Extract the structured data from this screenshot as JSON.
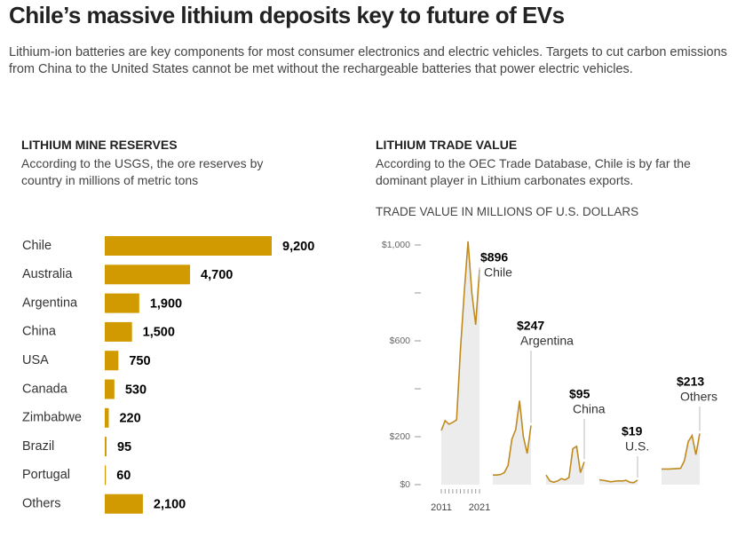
{
  "title": "Chile’s massive lithium deposits key to future of EVs",
  "description": "Lithium-ion batteries are key components for most consumer electronics and electric vehicles. Targets to cut carbon emissions from China to the United States cannot be met without the rechargeable batteries that power electric vehicles.",
  "chart_data": [
    {
      "type": "bar",
      "orientation": "horizontal",
      "title": "LITHIUM MINE RESERVES",
      "subtitle": "According to the USGS, the ore reserves by country in millions of metric tons",
      "categories": [
        "Chile",
        "Australia",
        "Argentina",
        "China",
        "USA",
        "Canada",
        "Zimbabwe",
        "Brazil",
        "Portugal",
        "Others"
      ],
      "values": [
        9200,
        4700,
        1900,
        1500,
        750,
        530,
        220,
        95,
        60,
        2100
      ],
      "value_labels": [
        "9,200",
        "4,700",
        "1,900",
        "1,500",
        "750",
        "530",
        "220",
        "95",
        "60",
        "2,100"
      ],
      "color": "#d19a00"
    },
    {
      "type": "line",
      "title": "LITHIUM TRADE VALUE",
      "subtitle": "According to the OEC Trade Database, Chile is by far the dominant player in Lithium carbonates exports.",
      "y_label": "TRADE VALUE IN MILLIONS OF U.S. DOLLARS",
      "x": [
        2011,
        2012,
        2013,
        2014,
        2015,
        2016,
        2017,
        2018,
        2019,
        2020,
        2021
      ],
      "xticks": [
        2011,
        2021
      ],
      "ylim": [
        0,
        1050
      ],
      "yticks": [
        {
          "value": 0,
          "label": "$0"
        },
        {
          "value": 200,
          "label": "$200"
        },
        {
          "value": 600,
          "label": "$600"
        },
        {
          "value": 1000,
          "label": "$1,000"
        }
      ],
      "minor_yticks": [
        400,
        800
      ],
      "color": "#c08a1e",
      "series": [
        {
          "name": "Chile",
          "value_label": "$896",
          "values": [
            226,
            267,
            252,
            260,
            270,
            560,
            800,
            1015,
            800,
            667,
            896
          ]
        },
        {
          "name": "Argentina",
          "value_label": "$247",
          "values": [
            40,
            40,
            42,
            50,
            80,
            190,
            230,
            350,
            200,
            130,
            247
          ]
        },
        {
          "name": "China",
          "value_label": "$95",
          "values": [
            40,
            15,
            10,
            15,
            25,
            20,
            30,
            150,
            160,
            50,
            95
          ]
        },
        {
          "name": "U.S.",
          "value_label": "$19",
          "values": [
            20,
            18,
            15,
            12,
            14,
            16,
            15,
            18,
            10,
            8,
            19
          ]
        },
        {
          "name": "Others",
          "value_label": "$213",
          "values": [
            65,
            65,
            65,
            66,
            67,
            68,
            100,
            180,
            205,
            125,
            213
          ]
        }
      ]
    }
  ]
}
